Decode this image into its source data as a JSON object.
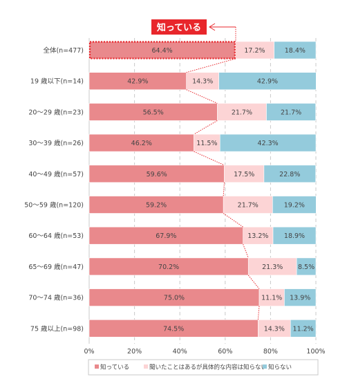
{
  "chart_data": {
    "type": "bar",
    "orientation": "horizontal",
    "stacked": "percent",
    "categories": [
      "全体(n=477)",
      "19 歳以下(n=14)",
      "20～29 歳(n=23)",
      "30～39 歳(n=26)",
      "40～49 歳(n=57)",
      "50～59 歳(n=120)",
      "60～64 歳(n=53)",
      "65～69 歳(n=47)",
      "70～74 歳(n=36)",
      "75 歳以上(n=98)"
    ],
    "series": [
      {
        "name": "知っている",
        "color": "#e9898c",
        "values": [
          64.4,
          42.9,
          56.5,
          46.2,
          59.6,
          59.2,
          67.9,
          70.2,
          75.0,
          74.5
        ],
        "labels": [
          "64.4%",
          "42.9%",
          "56.5%",
          "46.2%",
          "59.6%",
          "59.2%",
          "67.9%",
          "70.2%",
          "75.0%",
          "74.5%"
        ]
      },
      {
        "name": "聞いたことはあるが具体的な内容は知らない",
        "color": "#fcd4d5",
        "values": [
          17.2,
          14.3,
          21.7,
          11.5,
          17.5,
          21.7,
          13.2,
          21.3,
          11.1,
          14.3
        ],
        "labels": [
          "17.2%",
          "14.3%",
          "21.7%",
          "11.5%",
          "17.5%",
          "21.7%",
          "13.2%",
          "21.3%",
          "11.1%",
          "14.3%"
        ]
      },
      {
        "name": "知らない",
        "color": "#94cbdc",
        "values": [
          18.4,
          42.9,
          21.7,
          42.3,
          22.8,
          19.2,
          18.9,
          8.5,
          13.9,
          11.2
        ],
        "labels": [
          "18.4%",
          "42.9%",
          "21.7%",
          "42.3%",
          "22.8%",
          "19.2%",
          "18.9%",
          "8.5%",
          "13.9%",
          "11.2%"
        ]
      }
    ],
    "xlim": [
      0,
      100
    ],
    "xticks": [
      "0%",
      "20%",
      "40%",
      "60%",
      "80%",
      "100%"
    ],
    "grid": "vertical dashed",
    "legend_position": "bottom",
    "annotation": {
      "text": "知っている",
      "color": "#e8262b"
    },
    "connector_color": "#e8262b"
  }
}
